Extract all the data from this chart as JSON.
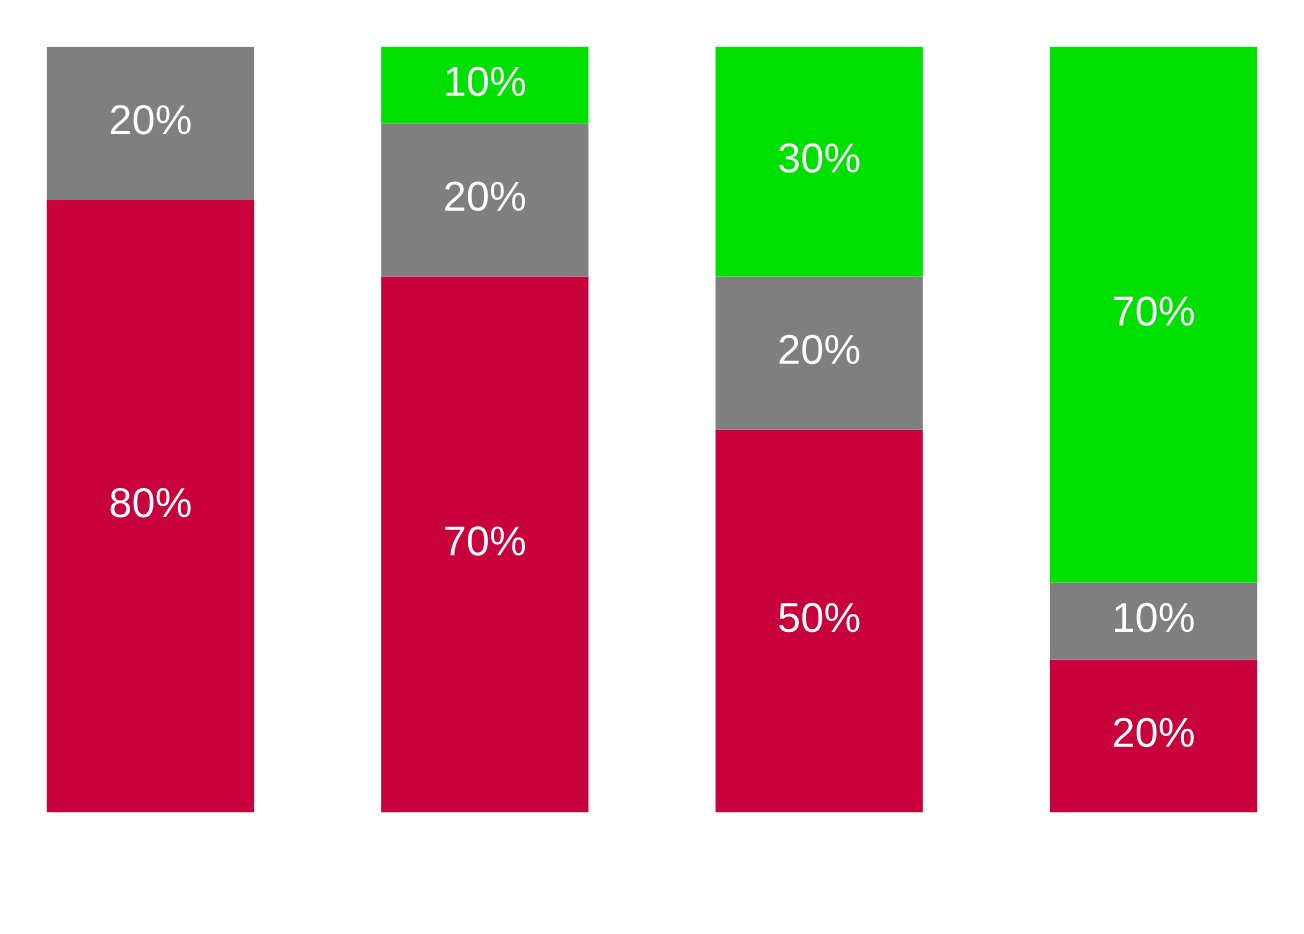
{
  "chart_data": {
    "type": "bar",
    "stacked": true,
    "categories": [
      null,
      null,
      null,
      null
    ],
    "series": [
      {
        "color": "#c8003c",
        "values": [
          80,
          70,
          50,
          20
        ],
        "value_labels": [
          "80%",
          "70%",
          "50%",
          "20%"
        ]
      },
      {
        "color": "#7f7f7f",
        "values": [
          20,
          20,
          20,
          10
        ],
        "value_labels": [
          "20%",
          "20%",
          "20%",
          "10%"
        ]
      },
      {
        "color": "#00e000",
        "values": [
          0,
          10,
          30,
          70
        ],
        "value_labels": [
          null,
          "10%",
          "30%",
          "70%"
        ]
      }
    ],
    "grid": false,
    "legend": false
  }
}
